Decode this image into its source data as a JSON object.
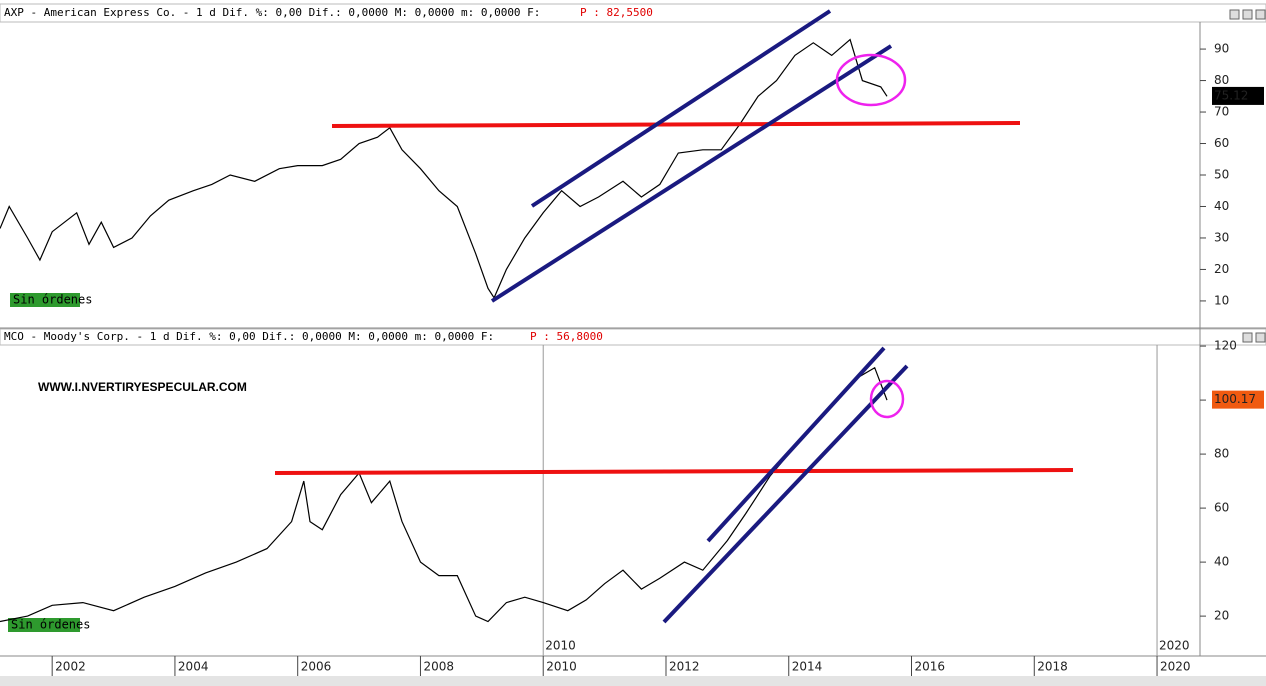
{
  "chart_data": [
    {
      "type": "line",
      "title": "AXP - American Express Co. -  1 d Dif. %: 0,00 Dif.: 0,0000 M: 0,0000 m: 0,0000 F:",
      "price_field": "P : 82,5500",
      "status": "Sin órdenes",
      "last_price": 75.12,
      "color": "#000000",
      "x": [
        2001.15,
        2001.3,
        2001.6,
        2001.8,
        2002.0,
        2002.4,
        2002.6,
        2002.8,
        2003.0,
        2003.3,
        2003.6,
        2003.9,
        2004.3,
        2004.6,
        2004.9,
        2005.3,
        2005.7,
        2006.0,
        2006.4,
        2006.7,
        2007.0,
        2007.3,
        2007.5,
        2007.7,
        2008.0,
        2008.3,
        2008.6,
        2008.9,
        2009.1,
        2009.2,
        2009.4,
        2009.7,
        2010.0,
        2010.3,
        2010.6,
        2010.9,
        2011.3,
        2011.6,
        2011.9,
        2012.2,
        2012.6,
        2012.9,
        2013.2,
        2013.5,
        2013.8,
        2014.1,
        2014.4,
        2014.7,
        2015.0,
        2015.2,
        2015.5,
        2015.6
      ],
      "values": [
        33,
        40,
        30,
        23,
        32,
        38,
        28,
        35,
        27,
        30,
        37,
        42,
        45,
        47,
        50,
        48,
        52,
        53,
        53,
        55,
        60,
        62,
        65,
        58,
        52,
        45,
        40,
        25,
        14,
        11,
        20,
        30,
        38,
        45,
        40,
        43,
        48,
        43,
        47,
        57,
        58,
        58,
        66,
        75,
        80,
        88,
        92,
        88,
        93,
        80,
        78,
        75
      ],
      "xlim": [
        2001.15,
        2020.7
      ],
      "ylim": [
        1.4,
        98.6
      ],
      "yticks": [
        10,
        20,
        30,
        40,
        50,
        60,
        70,
        80,
        90
      ]
    },
    {
      "type": "line",
      "title": "MCO - Moody's Corp. -  1 d Dif. %: 0,00 Dif.: 0,0000 M: 0,0000 m: 0,0000 F:",
      "price_field": "P : 56,8000",
      "status": "Sin órdenes",
      "last_price": 100.17,
      "color": "#000000",
      "watermark": "WWW.I.NVERTIRYESPECULAR.COM",
      "x": [
        2001.15,
        2001.6,
        2002.0,
        2002.5,
        2003.0,
        2003.5,
        2004.0,
        2004.5,
        2005.0,
        2005.5,
        2005.9,
        2006.1,
        2006.2,
        2006.4,
        2006.7,
        2007.0,
        2007.2,
        2007.5,
        2007.7,
        2008.0,
        2008.3,
        2008.6,
        2008.9,
        2009.1,
        2009.4,
        2009.7,
        2010.0,
        2010.4,
        2010.7,
        2011.0,
        2011.3,
        2011.6,
        2011.9,
        2012.3,
        2012.6,
        2013.0,
        2013.3,
        2013.7,
        2014.0,
        2014.4,
        2014.8,
        2015.1,
        2015.4,
        2015.6
      ],
      "values": [
        18,
        20,
        24,
        25,
        22,
        27,
        31,
        36,
        40,
        45,
        55,
        70,
        55,
        52,
        65,
        73,
        62,
        70,
        55,
        40,
        35,
        35,
        20,
        18,
        25,
        27,
        25,
        22,
        26,
        32,
        37,
        30,
        34,
        40,
        37,
        48,
        58,
        72,
        80,
        90,
        100,
        108,
        112,
        100
      ],
      "xlim": [
        2001.15,
        2020.7
      ],
      "ylim": [
        5.6,
        120.4
      ],
      "yticks": [
        20,
        40,
        60,
        80,
        100,
        120
      ],
      "xticks": [
        2002,
        2004,
        2006,
        2008,
        2010,
        2012,
        2014,
        2016,
        2018,
        2020
      ],
      "decade_marks": [
        2010,
        2020
      ]
    }
  ]
}
